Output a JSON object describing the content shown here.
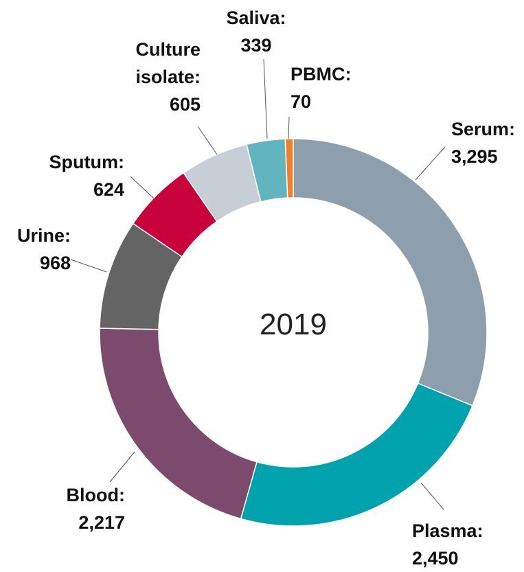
{
  "chart_data": {
    "type": "donut",
    "title": "2019",
    "categories": [
      "Serum:",
      "Plasma:",
      "Blood:",
      "Urine:",
      "Sputum:",
      "Culture isolate:",
      "Saliva:",
      "PBMC:"
    ],
    "values": [
      3295,
      2450,
      2217,
      968,
      624,
      605,
      339,
      70
    ],
    "value_labels": [
      "3,295",
      "2,450",
      "2,217",
      "968",
      "624",
      "605",
      "339",
      "70"
    ],
    "colors": [
      "#8d9fac",
      "#00a3ad",
      "#7b4a6c",
      "#646464",
      "#c8003c",
      "#c8ced6",
      "#62b5bf",
      "#f0812a"
    ]
  }
}
